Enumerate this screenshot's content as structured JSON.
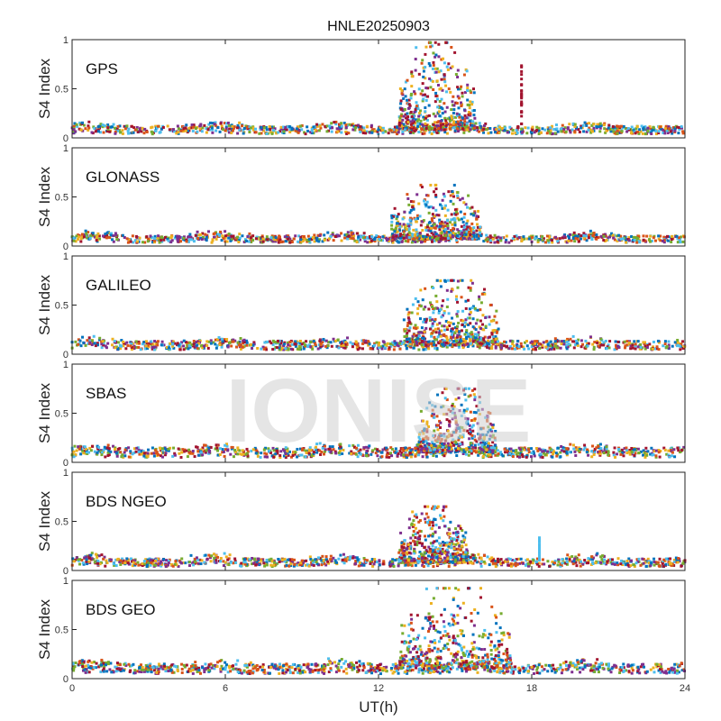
{
  "chart_data": {
    "type": "scatter",
    "title": "HNLE20250903",
    "xlabel": "UT(h)",
    "ylabel": "S4 Index",
    "xlim": [
      0,
      24
    ],
    "ylim": [
      0,
      1
    ],
    "xticks": [
      "0",
      "6",
      "12",
      "18",
      "24"
    ],
    "yticks": [
      "0",
      "0.5",
      "1"
    ],
    "grid": false,
    "watermark": "IONISE",
    "colors": [
      "#0072BD",
      "#D95319",
      "#EDB120",
      "#7E2F8E",
      "#77AC30",
      "#4DBEEE",
      "#A2142F"
    ],
    "panels": [
      {
        "name": "GPS",
        "background_s4": 0.08,
        "active_window_h": [
          12.8,
          15.8
        ],
        "peak_s4": 0.97,
        "extra_spikes": [
          {
            "x": 17.6,
            "y": 0.8
          }
        ]
      },
      {
        "name": "GLONASS",
        "background_s4": 0.07,
        "active_window_h": [
          12.5,
          16.0
        ],
        "peak_s4": 0.62,
        "extra_spikes": []
      },
      {
        "name": "GALILEO",
        "background_s4": 0.09,
        "active_window_h": [
          13.0,
          16.7
        ],
        "peak_s4": 0.75,
        "extra_spikes": []
      },
      {
        "name": "SBAS",
        "background_s4": 0.1,
        "active_window_h": [
          13.5,
          16.6
        ],
        "peak_s4": 0.75,
        "extra_spikes": []
      },
      {
        "name": "BDS NGEO",
        "background_s4": 0.08,
        "active_window_h": [
          12.8,
          15.5
        ],
        "peak_s4": 0.65,
        "extra_spikes": [
          {
            "x": 18.3,
            "y": 0.35
          }
        ]
      },
      {
        "name": "BDS GEO",
        "background_s4": 0.1,
        "active_window_h": [
          12.8,
          17.2
        ],
        "peak_s4": 0.92,
        "extra_spikes": []
      }
    ]
  }
}
